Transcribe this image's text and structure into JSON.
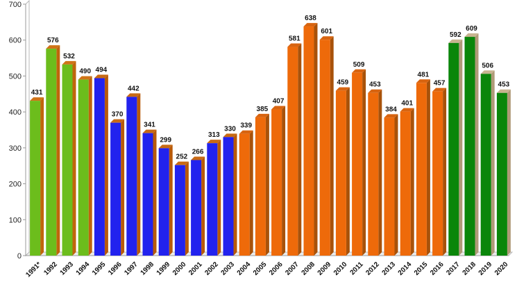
{
  "chart_data": {
    "type": "bar",
    "title": "",
    "xlabel": "",
    "ylabel": "",
    "ylim": [
      0,
      700
    ],
    "yticks": [
      0,
      100,
      200,
      300,
      400,
      500,
      600,
      700
    ],
    "grid": false,
    "legend": "none",
    "categories": [
      "1991*",
      "1992",
      "1993",
      "1994",
      "1995",
      "1996",
      "1997",
      "1998",
      "1999",
      "2000",
      "2001",
      "2002",
      "2003",
      "2004",
      "2005",
      "2006",
      "2007",
      "2008",
      "2009",
      "2010",
      "2011",
      "2012",
      "2013",
      "2014",
      "2015",
      "2016",
      "2017",
      "2018",
      "2019",
      "2020"
    ],
    "values": [
      431,
      576,
      532,
      490,
      494,
      370,
      442,
      341,
      299,
      252,
      266,
      313,
      330,
      339,
      385,
      407,
      581,
      638,
      601,
      459,
      509,
      453,
      384,
      401,
      481,
      457,
      592,
      609,
      506,
      453
    ],
    "color_groups": [
      "lime",
      "lime",
      "lime",
      "lime",
      "blue",
      "blue",
      "blue",
      "blue",
      "blue",
      "blue",
      "blue",
      "blue",
      "blue",
      "orange",
      "orange",
      "orange",
      "orange",
      "orange",
      "orange",
      "orange",
      "orange",
      "orange",
      "orange",
      "orange",
      "orange",
      "orange",
      "green",
      "green",
      "green",
      "green"
    ],
    "colors": {
      "lime": {
        "front": "#6cbd1c",
        "side": "#c0650c",
        "top": "#d07418"
      },
      "blue": {
        "front": "#2222ee",
        "side": "#b85a0a",
        "top": "#c86a14"
      },
      "orange": {
        "front": "#ee6a0a",
        "side": "#a8520a",
        "top": "#d86410"
      },
      "green": {
        "front": "#0a860a",
        "side": "#b09a78",
        "top": "#c8b490"
      }
    }
  }
}
